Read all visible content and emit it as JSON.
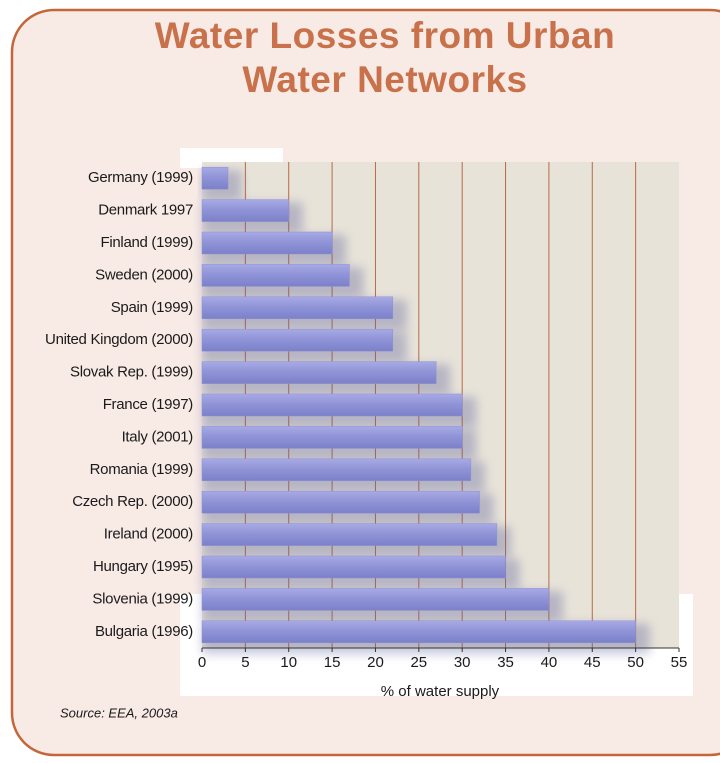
{
  "chart_data": {
    "type": "hbar",
    "title": "Water Losses from Urban Water Networks",
    "categories": [
      "Germany (1999)",
      "Denmark 1997",
      "Finland (1999)",
      "Sweden (2000)",
      "Spain (1999)",
      "United Kingdom (2000)",
      "Slovak Rep. (1999)",
      "France (1997)",
      "Italy (2001)",
      "Romania (1999)",
      "Czech Rep. (2000)",
      "Ireland (2000)",
      "Hungary (1995)",
      "Slovenia (1999)",
      "Bulgaria (1996)"
    ],
    "values": [
      3,
      10,
      15,
      17,
      22,
      22,
      27,
      30,
      30,
      31,
      32,
      34,
      35,
      40,
      50
    ],
    "color": "#8e92d6",
    "xlim": [
      0,
      55
    ],
    "xticks": [
      0,
      5,
      10,
      15,
      20,
      25,
      30,
      35,
      40,
      45,
      50,
      55
    ],
    "xlabel": "% of water supply",
    "source": "Source: EEA, 2003a",
    "grid": true
  }
}
